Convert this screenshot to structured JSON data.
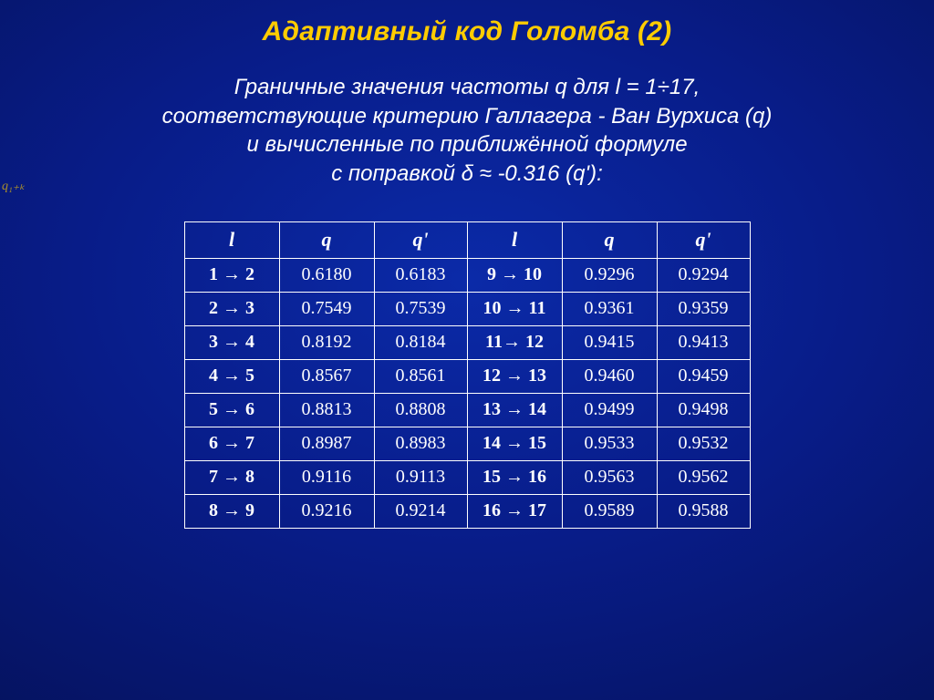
{
  "title": "Адаптивный код Голомба (2)",
  "subtitle_lines": [
    "Граничные значения частоты q для l = 1÷17,",
    "соответствующие критерию Галлагера - Ван Вурхиса (q)",
    "и вычисленные по приближённой формуле",
    "с поправкой δ ≈ -0.316 (q'):"
  ],
  "edge_mark": "q₁₊ₖ",
  "table": {
    "columns": [
      "l",
      "q",
      "q'",
      "l",
      "q",
      "q'"
    ],
    "col_classes": [
      "col-l",
      "col-q",
      "col-qp",
      "col-l",
      "col-q",
      "col-qp"
    ],
    "rows": [
      [
        "1 → 2",
        "0.6180",
        "0.6183",
        "9 → 10",
        "0.9296",
        "0.9294"
      ],
      [
        "2 → 3",
        "0.7549",
        "0.7539",
        "10 → 11",
        "0.9361",
        "0.9359"
      ],
      [
        "3 → 4",
        "0.8192",
        "0.8184",
        "11→ 12",
        "0.9415",
        "0.9413"
      ],
      [
        "4 → 5",
        "0.8567",
        "0.8561",
        "12 → 13",
        "0.9460",
        "0.9459"
      ],
      [
        "5 → 6",
        "0.8813",
        "0.8808",
        "13 → 14",
        "0.9499",
        "0.9498"
      ],
      [
        "6 → 7",
        "0.8987",
        "0.8983",
        "14 → 15",
        "0.9533",
        "0.9532"
      ],
      [
        "7 → 8",
        "0.9116",
        "0.9113",
        "15 → 16",
        "0.9563",
        "0.9562"
      ],
      [
        "8 → 9",
        "0.9216",
        "0.9214",
        "16 → 17",
        "0.9589",
        "0.9588"
      ]
    ],
    "border_color": "#ffffff",
    "text_color": "#ffffff",
    "header_font": "Times New Roman",
    "cell_font": "Times New Roman",
    "header_fontsize": 22,
    "cell_fontsize": 20
  },
  "colors": {
    "title": "#ffcc00",
    "text": "#ffffff",
    "bg_center": "#0b2aa8",
    "bg_outer": "#030b45"
  }
}
